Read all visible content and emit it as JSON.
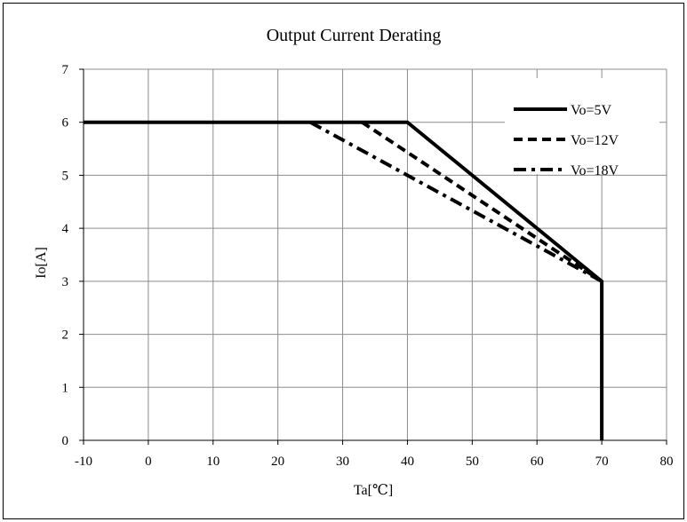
{
  "chart_data": {
    "type": "line",
    "title": "Output Current Derating",
    "xlabel": "Ta[℃]",
    "ylabel": "Io[A]",
    "xlim": [
      -10,
      80
    ],
    "ylim": [
      0,
      7
    ],
    "xticks": [
      -10,
      0,
      10,
      20,
      30,
      40,
      50,
      60,
      70,
      80
    ],
    "yticks": [
      0,
      1,
      2,
      3,
      4,
      5,
      6,
      7
    ],
    "grid": true,
    "legend_position": "top-right",
    "series": [
      {
        "name": "Vo=5V",
        "style": "solid",
        "color": "#000000",
        "points": [
          [
            -10,
            6
          ],
          [
            40,
            6
          ],
          [
            70,
            3
          ],
          [
            70,
            0
          ]
        ]
      },
      {
        "name": "Vo=12V",
        "style": "dashed",
        "color": "#000000",
        "points": [
          [
            33,
            6
          ],
          [
            70,
            3
          ]
        ]
      },
      {
        "name": "Vo=18V",
        "style": "dash-dot",
        "color": "#000000",
        "points": [
          [
            25,
            6
          ],
          [
            70,
            3
          ]
        ]
      }
    ]
  }
}
